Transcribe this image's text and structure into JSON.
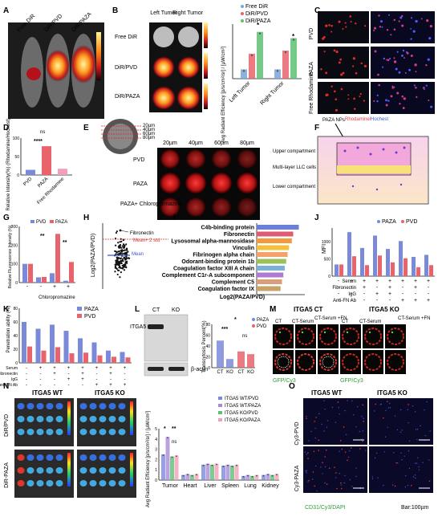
{
  "panels": {
    "A": {
      "letter": "A",
      "groups": [
        "Free DiR",
        "DiR/PVD",
        "DiR/PAZA"
      ]
    },
    "B": {
      "letter": "B",
      "cols": [
        "Left Tumor",
        "Right Tumor"
      ],
      "rows": [
        "Free DiR",
        "DiR/PVD",
        "DiR/PAZA"
      ],
      "legend": [
        "Free DiR",
        "DiR/PVD",
        "DiR/PAZA"
      ],
      "ylabel": "Avg Radiant Efficiency [p/s/cm²/sr] / [µW/cm²]",
      "categories": [
        "Left Tumor",
        "Right Tumor"
      ],
      "sig": [
        "*",
        "*"
      ]
    },
    "C": {
      "letter": "C",
      "rows": [
        "PVD",
        "PAZA",
        "Free Rhodamine"
      ],
      "caption1": "Rhodamine/",
      "caption2": "Hochest"
    },
    "D": {
      "letter": "D",
      "ylabel": "Relative Intensity(%) (Rhodamine/Hochest)",
      "categories": [
        "PVD",
        "PAZA",
        "Free Rhodamine"
      ],
      "sig": [
        "ns",
        "****"
      ]
    },
    "E": {
      "letter": "E",
      "depths": [
        "20µm",
        "40µm",
        "60µm",
        "80µm"
      ],
      "rows": [
        "PVD",
        "PAZA",
        "PAZA+ Chloropromazine"
      ]
    },
    "F": {
      "letter": "F",
      "nps": "PAZA NPs",
      "labels": [
        "Upper compartment",
        "Multi-layer LLC cells",
        "Lower compartment"
      ]
    },
    "G": {
      "letter": "G",
      "legend": [
        "PVD",
        "PAZA"
      ],
      "ylabel": "Relative Fluorescence Intensity (%)",
      "xlabel": "Chloropromazine",
      "sig": [
        "**",
        "**"
      ]
    },
    "H": {
      "letter": "H",
      "ylabel": "Log2(PAZA/PVD)",
      "top": "Fibronectin",
      "line": "Mean+ 2 std",
      "mean": "Mean"
    },
    "I": {
      "letter": "I",
      "xlabel": "Log2(PAZA/PVD)"
    },
    "J": {
      "letter": "J",
      "legend": [
        "PAZA",
        "PVD"
      ],
      "ylabel": "MFI",
      "rowlabels": [
        "Serum",
        "Fibronectin",
        "IgG",
        "Anti-FN Ab"
      ]
    },
    "K": {
      "letter": "K",
      "legend": [
        "PAZA",
        "PVD"
      ],
      "ylabel": "Penetration ability (%)",
      "rowlabels": [
        "Serum",
        "Fibronectin",
        "IgG",
        "Anti-FN Ab"
      ]
    },
    "L": {
      "letter": "L",
      "blotcols": [
        "CT",
        "KO"
      ],
      "bands": [
        "ITGA5",
        "β-actin"
      ],
      "legend": [
        "PAZA",
        "PVD"
      ],
      "ylabel": "Transcytosis Percent(%)",
      "xcats": [
        "CT",
        "KO",
        "CT",
        "KO"
      ],
      "sig": [
        "*",
        "***",
        "ns"
      ]
    },
    "M": {
      "letter": "M",
      "title_ct": "ITGA5 CT",
      "title_ko": "ITGA5 KO",
      "cols": [
        "CT",
        "CT-Serum",
        "CT-Serum +FN"
      ],
      "caption": "GFP/Cy3"
    },
    "N": {
      "letter": "N",
      "title_wt": "ITGA5 WT",
      "title_ko": "ITGA5 KO",
      "rows": [
        "DiR/PVD",
        "DiR-PAZA"
      ],
      "organs": [
        "Tumor",
        "Heart",
        "Liver",
        "Spleen",
        "Lung",
        "Kidney"
      ],
      "legend": [
        "ITGA5 WT/PVD",
        "ITGA5 WT/PAZA",
        "ITGA5 KO/PVD",
        "ITGA5 KO/PAZA"
      ],
      "ylabel": "Avg Radiant Efficiency [p/s/cm²/sr] / [µW/cm²]",
      "sig": [
        "*",
        "**",
        "ns"
      ]
    },
    "O": {
      "letter": "O",
      "cols": [
        "ITGA5 WT",
        "ITGA5 KO"
      ],
      "rows": [
        "Cy3-PVD",
        "Cy3-PAZA"
      ],
      "caption": "CD31/Cy3/DAPI",
      "scale": "Bar:100µm"
    }
  },
  "colors": {
    "pvd": "#e8636b",
    "paza": "#7b8ad8",
    "free": "#7aa4d6",
    "green": "#5fbf73",
    "pink": "#f2a0b8",
    "purple": "#a78bd6"
  },
  "chart_data": [
    {
      "type": "bar",
      "panel": "B",
      "categories": [
        "Left Tumor",
        "Right Tumor"
      ],
      "series": [
        {
          "name": "Free DiR",
          "values": [
            0.6,
            0.6
          ]
        },
        {
          "name": "DiR/PVD",
          "values": [
            1.6,
            1.8
          ]
        },
        {
          "name": "DiR/PAZA",
          "values": [
            3.0,
            2.6
          ]
        }
      ]
    },
    {
      "type": "bar",
      "panel": "D",
      "categories": [
        "PVD",
        "PAZA",
        "Free Rhodamine"
      ],
      "values": [
        14,
        78,
        17
      ],
      "ylim": [
        0,
        100
      ]
    },
    {
      "type": "bar",
      "panel": "G",
      "series": [
        {
          "name": "PVD",
          "values": [
            100,
            28,
            50,
            10
          ]
        },
        {
          "name": "PAZA",
          "values": [
            100,
            30,
            260,
            110
          ]
        }
      ],
      "ylim": [
        0,
        300
      ]
    },
    {
      "type": "bar",
      "panel": "I",
      "categories": [
        "C4b-binding protein",
        "Fibronectin",
        "Lysosomal alpha-mannosidase",
        "Vinculin",
        "Fibrinogen alpha chain",
        "Odorant-binding protein 1b",
        "Coagulation factor XIII A chain",
        "Complement C1r-A subcomponent",
        "Complement C5",
        "Coagulation factor IX"
      ],
      "values": [
        3.0,
        2.6,
        2.5,
        2.3,
        2.2,
        2.1,
        2.0,
        1.9,
        1.8,
        1.7
      ]
    },
    {
      "type": "bar",
      "panel": "J",
      "series": [
        {
          "name": "PAZA",
          "values": [
            340,
            1280,
            820,
            1180,
            790,
            1020,
            560,
            620
          ]
        },
        {
          "name": "PVD",
          "values": [
            340,
            580,
            320,
            600,
            400,
            520,
            260,
            320
          ]
        }
      ]
    },
    {
      "type": "bar",
      "panel": "K",
      "series": [
        {
          "name": "PAZA",
          "values": [
            60,
            50,
            56,
            47,
            36,
            30,
            18,
            16
          ]
        },
        {
          "name": "PVD",
          "values": [
            24,
            18,
            23,
            14,
            15,
            11,
            9,
            8
          ]
        }
      ]
    },
    {
      "type": "bar",
      "panel": "L",
      "series": [
        {
          "name": "PAZA",
          "values": [
            50,
            16
          ]
        },
        {
          "name": "PVD",
          "values": [
            30,
            25
          ]
        }
      ],
      "ylim": [
        0,
        80
      ]
    },
    {
      "type": "bar",
      "panel": "N",
      "categories": [
        "Tumor",
        "Heart",
        "Liver",
        "Spleen",
        "Lung",
        "Kidney"
      ],
      "series": [
        {
          "name": "ITGA5 WT/PVD",
          "values": [
            2.5,
            0.5,
            1.5,
            1.4,
            0.4,
            0.5
          ]
        },
        {
          "name": "ITGA5 WT/PAZA",
          "values": [
            4.2,
            0.6,
            1.6,
            1.5,
            0.5,
            0.6
          ]
        },
        {
          "name": "ITGA5 KO/PVD",
          "values": [
            2.3,
            0.5,
            1.5,
            1.4,
            0.4,
            0.5
          ]
        },
        {
          "name": "ITGA5 KO/PAZA",
          "values": [
            2.4,
            0.6,
            1.6,
            1.5,
            0.5,
            0.6
          ]
        }
      ]
    }
  ]
}
